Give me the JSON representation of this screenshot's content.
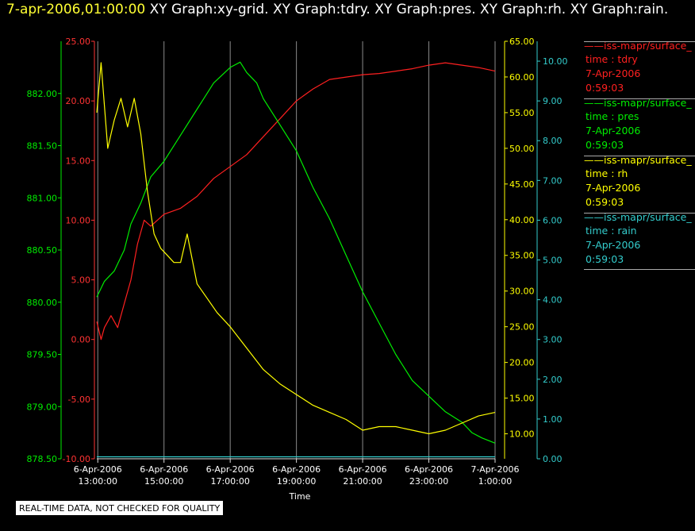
{
  "header": {
    "timestamp": "7-apr-2006,01:00:00",
    "graphs": "XY Graph:xy-grid.  XY Graph:tdry.  XY Graph:pres.  XY Graph:rh.  XY Graph:rain."
  },
  "legend": [
    {
      "name": "iss-mapr/surface_",
      "line1": "time : tdry",
      "line2": "7-Apr-2006",
      "line3": "0:59:03",
      "color": "#ff2020"
    },
    {
      "name": "iss-mapr/surface_",
      "line1": "time : pres",
      "line2": "7-Apr-2006",
      "line3": "0:59:03",
      "color": "#00ee00"
    },
    {
      "name": "iss-mapr/surface_",
      "line1": "time : rh",
      "line2": "7-Apr-2006",
      "line3": "0:59:03",
      "color": "#ffff00"
    },
    {
      "name": "iss-mapr/surface_",
      "line1": "time : rain",
      "line2": "7-Apr-2006",
      "line3": "0:59:03",
      "color": "#33cccc"
    }
  ],
  "footnote": "REAL-TIME DATA, NOT CHECKED FOR QUALITY",
  "chart_data": {
    "type": "line",
    "xlabel": "Time",
    "x_ticks": [
      {
        "l1": "6-Apr-2006",
        "l2": "13:00:00",
        "h": 13
      },
      {
        "l1": "6-Apr-2006",
        "l2": "15:00:00",
        "h": 15
      },
      {
        "l1": "6-Apr-2006",
        "l2": "17:00:00",
        "h": 17
      },
      {
        "l1": "6-Apr-2006",
        "l2": "19:00:00",
        "h": 19
      },
      {
        "l1": "6-Apr-2006",
        "l2": "21:00:00",
        "h": 21
      },
      {
        "l1": "6-Apr-2006",
        "l2": "23:00:00",
        "h": 23
      },
      {
        "l1": "7-Apr-2006",
        "l2": "1:00:00",
        "h": 25
      }
    ],
    "xlim_hours": [
      12.97,
      25.0
    ],
    "axes": {
      "pres": {
        "color": "#00ee00",
        "min": 878.5,
        "max": 882.5,
        "ticks": [
          "878.50",
          "879.00",
          "879.50",
          "880.00",
          "880.50",
          "881.00",
          "881.50",
          "882.00"
        ]
      },
      "tdry": {
        "color": "#ff3333",
        "min": -10,
        "max": 25,
        "ticks": [
          "-10.00",
          "-5.00",
          "0.00",
          "5.00",
          "10.00",
          "15.00",
          "20.00",
          "25.00"
        ]
      },
      "rh": {
        "color": "#ffff00",
        "min": 6.5,
        "max": 65,
        "ticks": [
          "10.00",
          "15.00",
          "20.00",
          "25.00",
          "30.00",
          "35.00",
          "40.00",
          "45.00",
          "50.00",
          "55.00",
          "60.00",
          "65.00"
        ]
      },
      "rain": {
        "color": "#33cccc",
        "min": 0,
        "max": 10.5,
        "ticks": [
          "0.00",
          "1.00",
          "2.00",
          "3.00",
          "4.00",
          "5.00",
          "6.00",
          "7.00",
          "8.00",
          "9.00",
          "10.00"
        ]
      }
    },
    "series": [
      {
        "key": "tdry",
        "color": "#ff2020",
        "x": [
          12.97,
          13.1,
          13.2,
          13.4,
          13.6,
          13.8,
          14.0,
          14.2,
          14.4,
          14.6,
          14.8,
          15.0,
          15.5,
          16.0,
          16.5,
          17.0,
          17.5,
          18.0,
          18.5,
          19.0,
          19.5,
          20.0,
          20.5,
          21.0,
          21.5,
          22.0,
          22.5,
          23.0,
          23.5,
          24.0,
          24.5,
          25.0
        ],
        "y": [
          1.5,
          0,
          1,
          2,
          1,
          3,
          5,
          8,
          10,
          9.5,
          10,
          10.5,
          11,
          12,
          13.5,
          14.5,
          15.5,
          17,
          18.5,
          20,
          21,
          21.8,
          22,
          22.2,
          22.3,
          22.5,
          22.7,
          23,
          23.2,
          23,
          22.8,
          22.5
        ]
      },
      {
        "key": "pres",
        "color": "#00ee00",
        "x": [
          12.97,
          13.2,
          13.5,
          13.8,
          14.0,
          14.3,
          14.6,
          15.0,
          15.5,
          16.0,
          16.5,
          17.0,
          17.3,
          17.5,
          17.8,
          18.0,
          18.5,
          19.0,
          19.5,
          20.0,
          20.5,
          21.0,
          21.5,
          22.0,
          22.5,
          23.0,
          23.5,
          24.0,
          24.3,
          24.6,
          25.0
        ],
        "y": [
          880.05,
          880.2,
          880.3,
          880.5,
          880.75,
          880.95,
          881.2,
          881.35,
          881.6,
          881.85,
          882.1,
          882.25,
          882.3,
          882.2,
          882.1,
          881.95,
          881.7,
          881.45,
          881.1,
          880.8,
          880.45,
          880.1,
          879.8,
          879.5,
          879.25,
          879.1,
          878.95,
          878.85,
          878.75,
          878.7,
          878.65
        ]
      },
      {
        "key": "rh",
        "color": "#ffff00",
        "x": [
          12.97,
          13.1,
          13.3,
          13.5,
          13.7,
          13.9,
          14.1,
          14.3,
          14.5,
          14.7,
          14.9,
          15.1,
          15.3,
          15.5,
          15.7,
          16.0,
          16.3,
          16.6,
          17.0,
          17.5,
          18.0,
          18.5,
          19.0,
          19.5,
          20.0,
          20.5,
          21.0,
          21.5,
          22.0,
          22.5,
          23.0,
          23.5,
          24.0,
          24.5,
          25.0
        ],
        "y": [
          55,
          62,
          50,
          54,
          57,
          53,
          57,
          52,
          44,
          38,
          36,
          35,
          34,
          34,
          38,
          31,
          29,
          27,
          25,
          22,
          19,
          17,
          15.5,
          14,
          13,
          12,
          10.5,
          11,
          11,
          10.5,
          10,
          10.5,
          11.5,
          12.5,
          13
        ]
      },
      {
        "key": "rain",
        "color": "#33cccc",
        "x": [
          12.97,
          25.0
        ],
        "y": [
          0.05,
          0.05
        ]
      }
    ]
  }
}
